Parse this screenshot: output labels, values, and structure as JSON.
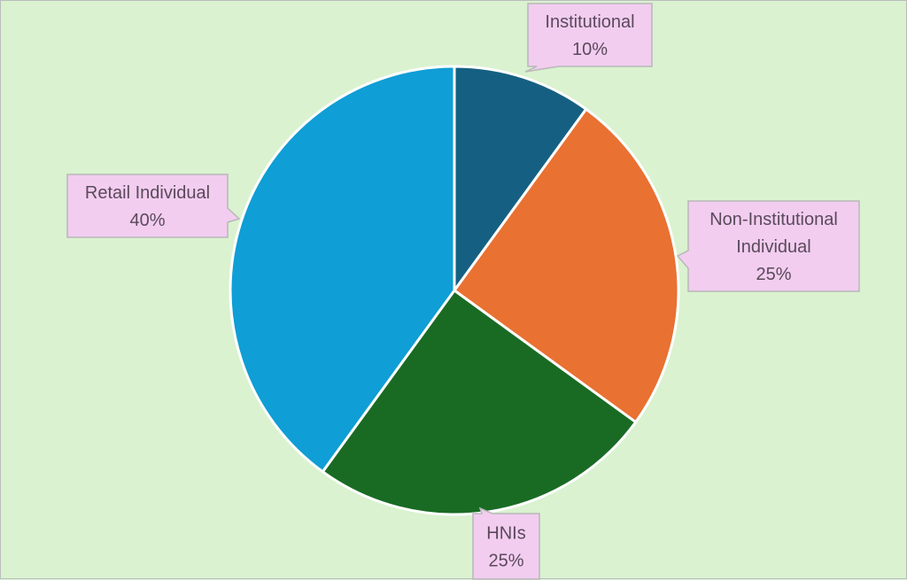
{
  "chart_data": {
    "type": "pie",
    "title": "",
    "slices": [
      {
        "label_lines": [
          "Institutional"
        ],
        "percent_label": "10%",
        "value": 10,
        "color": "#156082"
      },
      {
        "label_lines": [
          "Non-Institutional",
          "Individual"
        ],
        "percent_label": "25%",
        "value": 25,
        "color": "#e97132"
      },
      {
        "label_lines": [
          "HNIs"
        ],
        "percent_label": "25%",
        "value": 25,
        "color": "#196b24"
      },
      {
        "label_lines": [
          "Retail Individual"
        ],
        "percent_label": "40%",
        "value": 40,
        "color": "#0f9ed5"
      }
    ],
    "start_angle": "12 o'clock",
    "direction": "clockwise",
    "slice_border_color": "#ffffff",
    "callout_fill": "#f2cdf0",
    "callout_border": "#b8b8b8",
    "background_color": "#daf2d0"
  }
}
